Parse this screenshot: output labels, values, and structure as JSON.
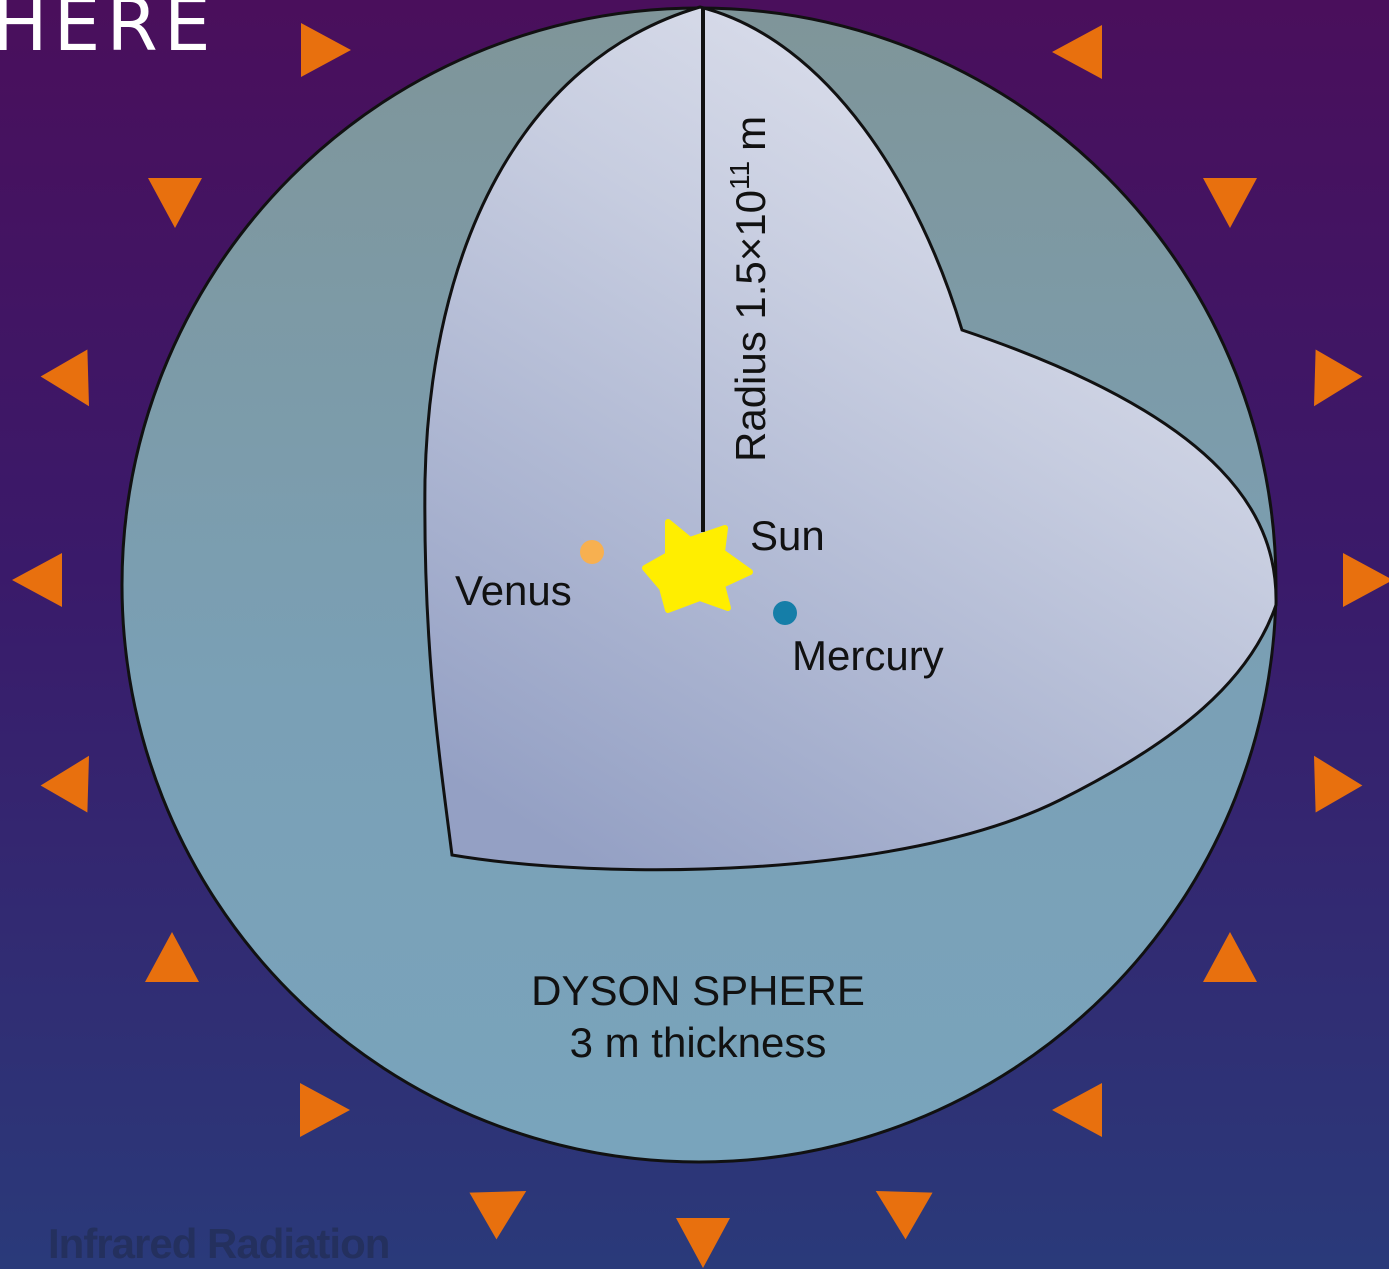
{
  "title": "HERE",
  "radius_label": {
    "text": "Radius 1.5×10",
    "exponent": "11",
    "unit": "m"
  },
  "bodies": {
    "sun": "Sun",
    "venus": "Venus",
    "mercury": "Mercury"
  },
  "sphere_label": {
    "name": "DYSON SPHERE",
    "thickness": "3 m thickness"
  },
  "radiation_label": "Infrared Radiation"
}
